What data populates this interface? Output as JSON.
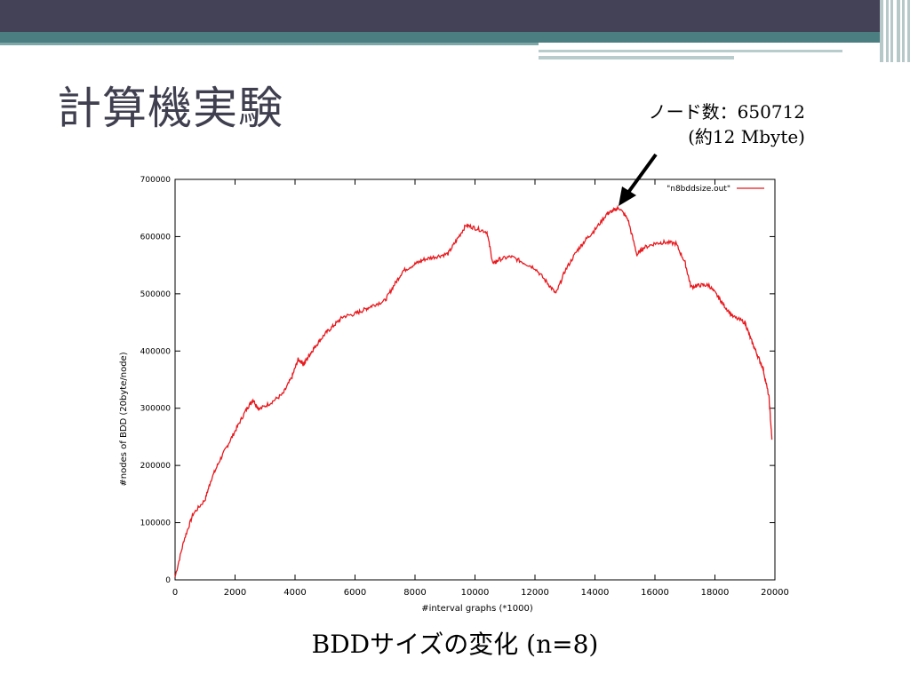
{
  "slide": {
    "title": "計算機実験",
    "annotation_line1": "ノード数：650712",
    "annotation_line2": "(約12 Mbyte)",
    "caption": "BDDサイズの変化 (n=8)",
    "accent_color": "#e8191e",
    "header_color": "#434257",
    "teal_color": "#4a7e80"
  },
  "chart_data": {
    "type": "line",
    "xlabel": "#interval graphs (*1000)",
    "ylabel": "#nodes of BDD (20byte/node)",
    "xlim": [
      0,
      20000
    ],
    "ylim": [
      0,
      700000
    ],
    "xticks": [
      0,
      2000,
      4000,
      6000,
      8000,
      10000,
      12000,
      14000,
      16000,
      18000,
      20000
    ],
    "yticks": [
      0,
      100000,
      200000,
      300000,
      400000,
      500000,
      600000,
      700000
    ],
    "xtick_labels": [
      "0",
      "2000",
      "4000",
      "6000",
      "8000",
      "10000",
      "12000",
      "14000",
      "16000",
      "18000",
      "20000"
    ],
    "ytick_labels": [
      "0",
      "100000",
      "200000",
      "300000",
      "400000",
      "500000",
      "600000",
      "700000"
    ],
    "grid": false,
    "legend_position": "top-right",
    "series": [
      {
        "name": "\"n8bddsize.out\"",
        "color": "#e8191e",
        "x": [
          0,
          300,
          600,
          1000,
          1200,
          1500,
          1800,
          2100,
          2400,
          2600,
          2800,
          3200,
          3600,
          3900,
          4100,
          4300,
          4500,
          4700,
          5000,
          5300,
          5600,
          6000,
          6300,
          6600,
          7000,
          7300,
          7600,
          8000,
          8300,
          8700,
          9100,
          9400,
          9700,
          10000,
          10400,
          10600,
          10800,
          11200,
          11600,
          12000,
          12400,
          12700,
          13000,
          13400,
          13700,
          14000,
          14400,
          14600,
          14800,
          15100,
          15400,
          15600,
          16000,
          16300,
          16700,
          17000,
          17200,
          17500,
          17800,
          18100,
          18300,
          18600,
          19000,
          19200,
          19400,
          19600,
          19800,
          19900
        ],
        "y": [
          5000,
          70000,
          115000,
          140000,
          175000,
          210000,
          240000,
          270000,
          300000,
          315000,
          298000,
          310000,
          325000,
          355000,
          385000,
          378000,
          395000,
          410000,
          430000,
          445000,
          460000,
          465000,
          472000,
          480000,
          488000,
          515000,
          540000,
          552000,
          560000,
          565000,
          570000,
          595000,
          620000,
          615000,
          608000,
          552000,
          560000,
          565000,
          555000,
          545000,
          520000,
          500000,
          540000,
          575000,
          595000,
          612000,
          640000,
          645000,
          650712,
          630000,
          568000,
          580000,
          588000,
          590000,
          588000,
          555000,
          512000,
          515000,
          515000,
          495000,
          480000,
          460000,
          450000,
          420000,
          395000,
          370000,
          320000,
          245000
        ]
      }
    ],
    "peak": {
      "x": 14800,
      "y": 650712
    }
  }
}
